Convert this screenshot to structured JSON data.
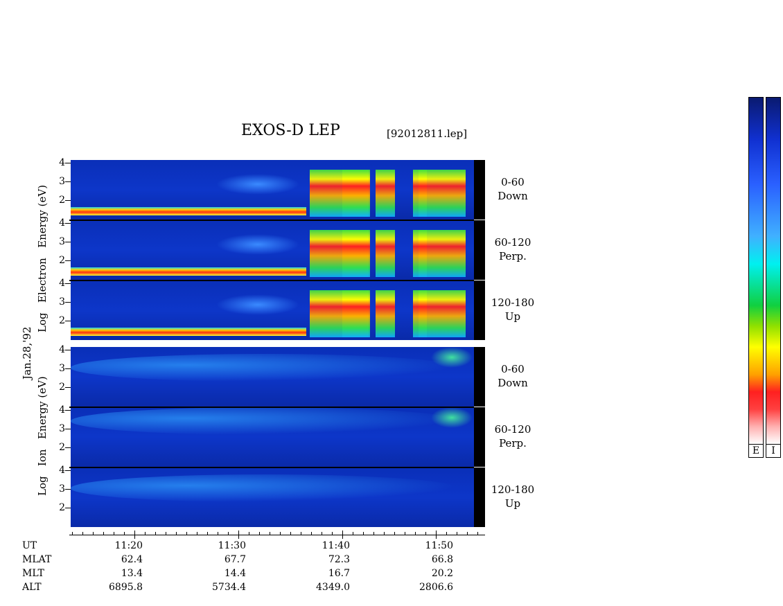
{
  "header": {
    "title": "EXOS-D LEP",
    "file": "[92012811.lep]"
  },
  "date_label": "Jan.28,'92",
  "electron_axis": {
    "label_parts": [
      "Log",
      "Electron",
      "Energy",
      "(eV)"
    ]
  },
  "ion_axis": {
    "label_parts": [
      "Log",
      "Ion",
      "Energy",
      "(eV)"
    ]
  },
  "y_ticks": [
    "4",
    "3",
    "2"
  ],
  "panels": [
    {
      "species": "Electron",
      "angle": "0-60",
      "dir": "Down"
    },
    {
      "species": "Electron",
      "angle": "60-120",
      "dir": "Perp."
    },
    {
      "species": "Electron",
      "angle": "120-180",
      "dir": "Up"
    },
    {
      "species": "Ion",
      "angle": "0-60",
      "dir": "Down"
    },
    {
      "species": "Ion",
      "angle": "60-120",
      "dir": "Perp."
    },
    {
      "species": "Ion",
      "angle": "120-180",
      "dir": "Up"
    }
  ],
  "colorbar": {
    "labels": [
      "E",
      "I"
    ]
  },
  "ephemeris": {
    "row_labels": [
      "UT",
      "MLAT",
      "MLT",
      "ALT"
    ],
    "columns": [
      {
        "UT": "11:20",
        "MLAT": "62.4",
        "MLT": "13.4",
        "ALT": "6895.8"
      },
      {
        "UT": "11:30",
        "MLAT": "67.7",
        "MLT": "14.4",
        "ALT": "5734.4"
      },
      {
        "UT": "11:40",
        "MLAT": "72.3",
        "MLT": "16.7",
        "ALT": "4349.0"
      },
      {
        "UT": "11:50",
        "MLAT": "66.8",
        "MLT": "20.2",
        "ALT": "2806.6"
      }
    ]
  },
  "chart_data": {
    "type": "heatmap",
    "title": "EXOS-D LEP",
    "subtitle": "[92012811.lep]",
    "xlabel": "UT",
    "ylabel": "Log Energy (eV)",
    "x_ticks": [
      "11:20",
      "11:30",
      "11:40",
      "11:50"
    ],
    "y_ticks": [
      2,
      3,
      4
    ],
    "ylim": [
      1,
      4.2
    ],
    "panels": [
      {
        "name": "Electron 0-60 Down"
      },
      {
        "name": "Electron 60-120 Perp."
      },
      {
        "name": "Electron 120-180 Up"
      },
      {
        "name": "Ion 0-60 Down"
      },
      {
        "name": "Ion 60-120 Perp."
      },
      {
        "name": "Ion 120-180 Up"
      }
    ],
    "colors": {
      "low": "#0a1a70",
      "mid": "#00f0f0",
      "high": "#ff2020",
      "max": "#ffffff"
    }
  }
}
